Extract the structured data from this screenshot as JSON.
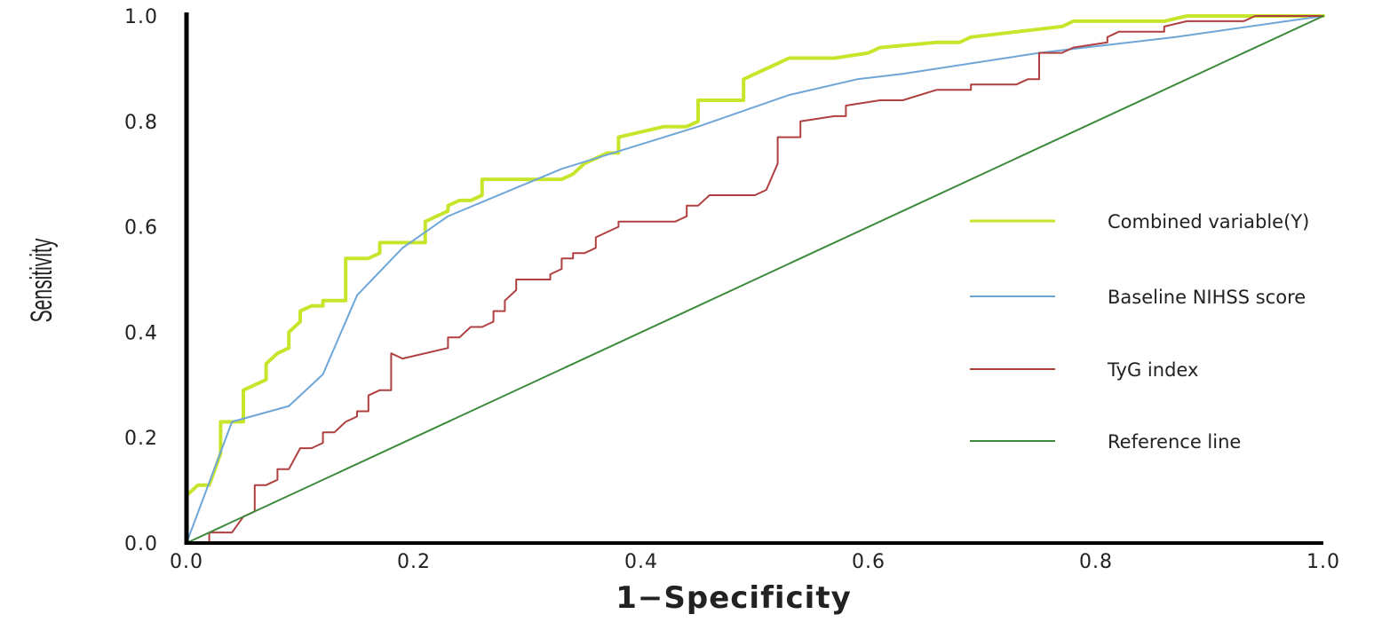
{
  "chart_data": {
    "type": "line",
    "title": "",
    "xlabel": "1−Specificity",
    "ylabel": "Sensitivity",
    "xlim": [
      0,
      1
    ],
    "ylim": [
      0,
      1
    ],
    "x_ticks": [
      "0.0",
      "0.2",
      "0.4",
      "0.6",
      "0.8",
      "1.0"
    ],
    "y_ticks": [
      "0.0",
      "0.2",
      "0.4",
      "0.6",
      "0.8",
      "1.0"
    ],
    "grid": false,
    "legend_position": "right",
    "series": [
      {
        "name": "Combined variable(Y)",
        "color": "#c6e62c",
        "step": true,
        "points": [
          [
            0,
            0
          ],
          [
            0,
            0.09
          ],
          [
            0.01,
            0.11
          ],
          [
            0.02,
            0.11
          ],
          [
            0.03,
            0.17
          ],
          [
            0.03,
            0.23
          ],
          [
            0.05,
            0.23
          ],
          [
            0.05,
            0.29
          ],
          [
            0.06,
            0.3
          ],
          [
            0.07,
            0.31
          ],
          [
            0.07,
            0.34
          ],
          [
            0.08,
            0.36
          ],
          [
            0.09,
            0.37
          ],
          [
            0.09,
            0.4
          ],
          [
            0.1,
            0.42
          ],
          [
            0.1,
            0.44
          ],
          [
            0.11,
            0.45
          ],
          [
            0.12,
            0.45
          ],
          [
            0.12,
            0.46
          ],
          [
            0.14,
            0.46
          ],
          [
            0.14,
            0.54
          ],
          [
            0.16,
            0.54
          ],
          [
            0.17,
            0.55
          ],
          [
            0.17,
            0.57
          ],
          [
            0.21,
            0.57
          ],
          [
            0.21,
            0.61
          ],
          [
            0.22,
            0.62
          ],
          [
            0.23,
            0.63
          ],
          [
            0.23,
            0.64
          ],
          [
            0.24,
            0.65
          ],
          [
            0.25,
            0.65
          ],
          [
            0.26,
            0.66
          ],
          [
            0.26,
            0.69
          ],
          [
            0.33,
            0.69
          ],
          [
            0.34,
            0.7
          ],
          [
            0.35,
            0.72
          ],
          [
            0.36,
            0.73
          ],
          [
            0.37,
            0.74
          ],
          [
            0.38,
            0.74
          ],
          [
            0.38,
            0.77
          ],
          [
            0.42,
            0.79
          ],
          [
            0.44,
            0.79
          ],
          [
            0.45,
            0.8
          ],
          [
            0.45,
            0.84
          ],
          [
            0.48,
            0.84
          ],
          [
            0.49,
            0.84
          ],
          [
            0.49,
            0.88
          ],
          [
            0.5,
            0.89
          ],
          [
            0.51,
            0.9
          ],
          [
            0.52,
            0.91
          ],
          [
            0.53,
            0.92
          ],
          [
            0.57,
            0.92
          ],
          [
            0.6,
            0.93
          ],
          [
            0.61,
            0.94
          ],
          [
            0.66,
            0.95
          ],
          [
            0.68,
            0.95
          ],
          [
            0.69,
            0.96
          ],
          [
            0.73,
            0.97
          ],
          [
            0.77,
            0.98
          ],
          [
            0.78,
            0.99
          ],
          [
            0.8,
            0.99
          ],
          [
            0.82,
            0.99
          ],
          [
            0.86,
            0.99
          ],
          [
            0.88,
            1.0
          ],
          [
            1.0,
            1.0
          ]
        ]
      },
      {
        "name": "Baseline NIHSS score",
        "color": "#6fa6d8",
        "step": false,
        "points": [
          [
            0,
            0
          ],
          [
            0.04,
            0.23
          ],
          [
            0.09,
            0.26
          ],
          [
            0.12,
            0.32
          ],
          [
            0.15,
            0.47
          ],
          [
            0.19,
            0.56
          ],
          [
            0.23,
            0.62
          ],
          [
            0.33,
            0.71
          ],
          [
            0.45,
            0.79
          ],
          [
            0.53,
            0.85
          ],
          [
            0.59,
            0.88
          ],
          [
            0.63,
            0.89
          ],
          [
            0.75,
            0.93
          ],
          [
            0.79,
            0.94
          ],
          [
            0.87,
            0.96
          ],
          [
            1.0,
            1.0
          ]
        ]
      },
      {
        "name": "TyG index",
        "color": "#b04040",
        "step": true,
        "points": [
          [
            0,
            0
          ],
          [
            0.02,
            0
          ],
          [
            0.02,
            0.02
          ],
          [
            0.04,
            0.02
          ],
          [
            0.05,
            0.05
          ],
          [
            0.06,
            0.06
          ],
          [
            0.06,
            0.11
          ],
          [
            0.07,
            0.11
          ],
          [
            0.08,
            0.12
          ],
          [
            0.08,
            0.14
          ],
          [
            0.09,
            0.14
          ],
          [
            0.1,
            0.18
          ],
          [
            0.11,
            0.18
          ],
          [
            0.12,
            0.19
          ],
          [
            0.12,
            0.21
          ],
          [
            0.13,
            0.21
          ],
          [
            0.14,
            0.23
          ],
          [
            0.15,
            0.24
          ],
          [
            0.15,
            0.25
          ],
          [
            0.16,
            0.25
          ],
          [
            0.16,
            0.28
          ],
          [
            0.17,
            0.29
          ],
          [
            0.18,
            0.29
          ],
          [
            0.18,
            0.36
          ],
          [
            0.19,
            0.35
          ],
          [
            0.23,
            0.37
          ],
          [
            0.23,
            0.39
          ],
          [
            0.24,
            0.39
          ],
          [
            0.25,
            0.41
          ],
          [
            0.26,
            0.41
          ],
          [
            0.27,
            0.42
          ],
          [
            0.27,
            0.44
          ],
          [
            0.28,
            0.44
          ],
          [
            0.28,
            0.46
          ],
          [
            0.29,
            0.48
          ],
          [
            0.29,
            0.5
          ],
          [
            0.32,
            0.5
          ],
          [
            0.32,
            0.51
          ],
          [
            0.33,
            0.52
          ],
          [
            0.33,
            0.54
          ],
          [
            0.34,
            0.54
          ],
          [
            0.34,
            0.55
          ],
          [
            0.35,
            0.55
          ],
          [
            0.36,
            0.56
          ],
          [
            0.36,
            0.58
          ],
          [
            0.37,
            0.59
          ],
          [
            0.38,
            0.6
          ],
          [
            0.38,
            0.61
          ],
          [
            0.43,
            0.61
          ],
          [
            0.44,
            0.62
          ],
          [
            0.44,
            0.64
          ],
          [
            0.45,
            0.64
          ],
          [
            0.46,
            0.66
          ],
          [
            0.5,
            0.66
          ],
          [
            0.51,
            0.67
          ],
          [
            0.52,
            0.72
          ],
          [
            0.52,
            0.77
          ],
          [
            0.54,
            0.77
          ],
          [
            0.54,
            0.8
          ],
          [
            0.57,
            0.81
          ],
          [
            0.58,
            0.81
          ],
          [
            0.58,
            0.83
          ],
          [
            0.61,
            0.84
          ],
          [
            0.63,
            0.84
          ],
          [
            0.66,
            0.86
          ],
          [
            0.69,
            0.86
          ],
          [
            0.69,
            0.87
          ],
          [
            0.73,
            0.87
          ],
          [
            0.74,
            0.88
          ],
          [
            0.75,
            0.88
          ],
          [
            0.75,
            0.93
          ],
          [
            0.77,
            0.93
          ],
          [
            0.78,
            0.94
          ],
          [
            0.81,
            0.95
          ],
          [
            0.81,
            0.96
          ],
          [
            0.82,
            0.97
          ],
          [
            0.86,
            0.97
          ],
          [
            0.86,
            0.98
          ],
          [
            0.88,
            0.99
          ],
          [
            0.93,
            0.99
          ],
          [
            0.94,
            1.0
          ],
          [
            1.0,
            1.0
          ]
        ]
      },
      {
        "name": "Reference line",
        "color": "#3c8a3c",
        "step": false,
        "points": [
          [
            0,
            0
          ],
          [
            1,
            1
          ]
        ]
      }
    ]
  }
}
